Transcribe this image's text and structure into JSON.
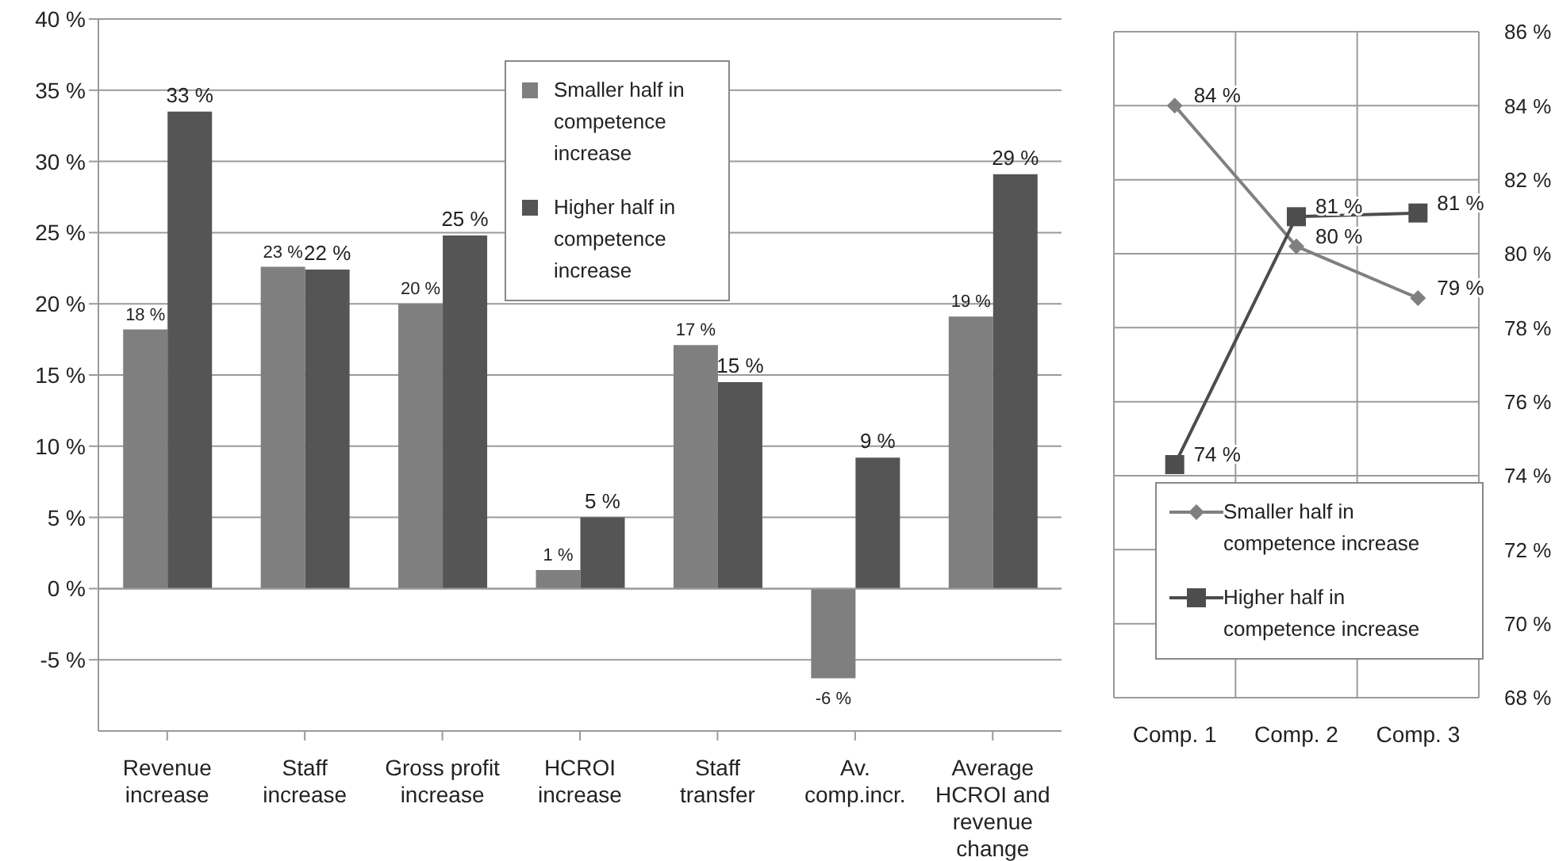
{
  "chart_data": [
    {
      "type": "bar",
      "categories": [
        "Revenue increase",
        "Staff increase",
        "Gross profit increase",
        "HCROI increase",
        "Staff transfer",
        "Av. comp.incr.",
        "Average HCROI and revenue change"
      ],
      "series": [
        {
          "name": "Smaller half in competence increase",
          "color": "#7f7f7f",
          "values": [
            18.2,
            22.6,
            20.0,
            1.3,
            17.1,
            -6.3,
            19.1
          ],
          "value_labels": [
            "18 %",
            "23 %",
            "20 %",
            "1 %",
            "17 %",
            "-6 %",
            "19 %"
          ]
        },
        {
          "name": "Higher half in competence increase",
          "color": "#555555",
          "values": [
            33.5,
            22.4,
            24.8,
            5.0,
            14.5,
            9.2,
            29.1
          ],
          "value_labels": [
            "33 %",
            "22 %",
            "25 %",
            "5 %",
            "15 %",
            "9 %",
            "29 %"
          ]
        }
      ],
      "ylim": [
        -10,
        40
      ],
      "yticks": [
        {
          "value": -5,
          "label": "-5 %"
        },
        {
          "value": 0,
          "label": "0 %"
        },
        {
          "value": 5,
          "label": "5 %"
        },
        {
          "value": 10,
          "label": "10 %"
        },
        {
          "value": 15,
          "label": "15 %"
        },
        {
          "value": 20,
          "label": "20 %"
        },
        {
          "value": 25,
          "label": "25 %"
        },
        {
          "value": 30,
          "label": "30 %"
        },
        {
          "value": 35,
          "label": "35 %"
        },
        {
          "value": 40,
          "label": "40 %"
        }
      ],
      "grid": "y",
      "legend": "top"
    },
    {
      "type": "line",
      "categories": [
        "Comp. 1",
        "Comp. 2",
        "Comp. 3"
      ],
      "series": [
        {
          "name": "Smaller half in competence increase",
          "color": "#808080",
          "marker": "diamond",
          "values": [
            84,
            80.2,
            78.8
          ],
          "value_labels": [
            "84 %",
            "80 %",
            "79 %"
          ]
        },
        {
          "name": "Higher half in competence increase",
          "color": "#4d4d4d",
          "marker": "square",
          "values": [
            74.3,
            81,
            81.1
          ],
          "value_labels": [
            "74 %",
            "81 %",
            "81 %"
          ]
        }
      ],
      "ylim": [
        68,
        86
      ],
      "yticks": [
        {
          "value": 68,
          "label": "68 %"
        },
        {
          "value": 70,
          "label": "70 %"
        },
        {
          "value": 72,
          "label": "72 %"
        },
        {
          "value": 74,
          "label": "74 %"
        },
        {
          "value": 76,
          "label": "76 %"
        },
        {
          "value": 78,
          "label": "78 %"
        },
        {
          "value": 80,
          "label": "80 %"
        },
        {
          "value": 82,
          "label": "82 %"
        },
        {
          "value": 84,
          "label": "84 %"
        },
        {
          "value": 86,
          "label": "86 %"
        }
      ],
      "grid": true,
      "legend": "bottom"
    }
  ]
}
